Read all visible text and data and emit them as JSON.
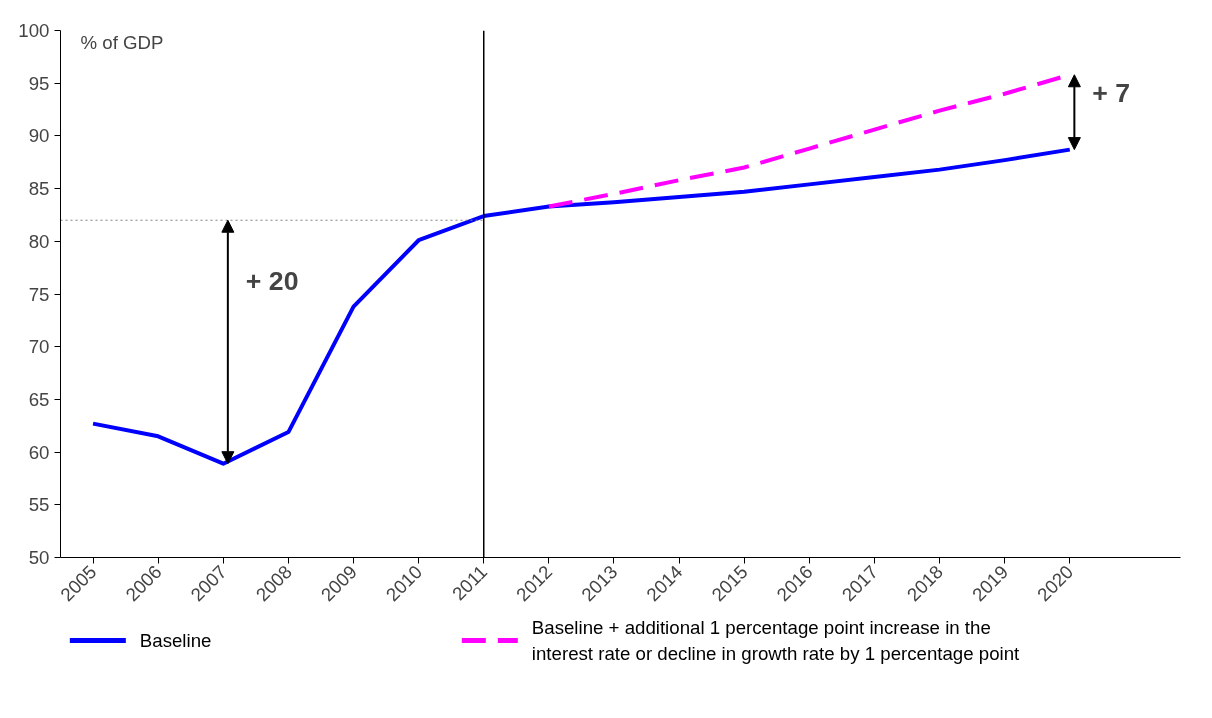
{
  "chart_data": {
    "type": "line",
    "ylabel": "% of GDP",
    "categories": [
      "2005",
      "2006",
      "2007",
      "2008",
      "2009",
      "2010",
      "2011",
      "2012",
      "2013",
      "2014",
      "2015",
      "2016",
      "2017",
      "2018",
      "2019",
      "2020"
    ],
    "series": [
      {
        "name": "Baseline",
        "color": "#0000ff",
        "line_style": "solid",
        "values": [
          62.7,
          61.5,
          58.9,
          61.9,
          73.8,
          80.1,
          82.4,
          83.3,
          83.7,
          84.2,
          84.7,
          85.4,
          86.1,
          86.8,
          87.7,
          88.7
        ]
      },
      {
        "name": "Baseline + additional 1 percentage point increase in the interest rate or decline in growth rate by 1 percentage point",
        "color": "#ff00ff",
        "line_style": "dashed",
        "values": [
          null,
          null,
          null,
          null,
          null,
          null,
          null,
          83.3,
          84.5,
          85.8,
          87.0,
          88.8,
          90.6,
          92.4,
          94.0,
          95.8
        ]
      }
    ],
    "ylim": [
      50,
      100
    ],
    "yticks": [
      50,
      55,
      60,
      65,
      70,
      75,
      80,
      85,
      90,
      95,
      100
    ],
    "ref_lines": [
      {
        "axis": "x",
        "value": "2011",
        "color": "#000000",
        "line_style": "solid"
      },
      {
        "axis": "y",
        "value": 82,
        "color": "#808080",
        "line_style": "dotted"
      }
    ],
    "annotations": [
      {
        "text": "+ 20",
        "x": "2007",
        "y": 82
      },
      {
        "text": "+ 7",
        "x": "2020",
        "y": 95.8
      }
    ],
    "grid": false,
    "legend": "bottom",
    "marker": "none"
  }
}
